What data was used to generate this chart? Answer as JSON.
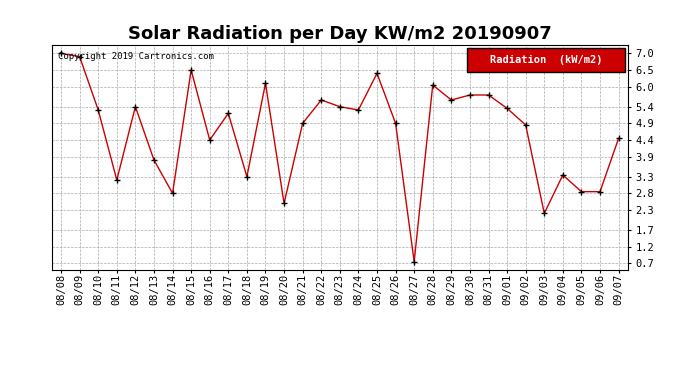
{
  "title": "Solar Radiation per Day KW/m2 20190907",
  "copyright": "Copyright 2019 Cartronics.com",
  "legend_label": "Radiation  (kW/m2)",
  "dates": [
    "08/08",
    "08/09",
    "08/10",
    "08/11",
    "08/12",
    "08/13",
    "08/14",
    "08/15",
    "08/16",
    "08/17",
    "08/18",
    "08/19",
    "08/20",
    "08/21",
    "08/22",
    "08/23",
    "08/24",
    "08/25",
    "08/26",
    "08/27",
    "08/28",
    "08/29",
    "08/30",
    "08/31",
    "09/01",
    "09/02",
    "09/03",
    "09/04",
    "09/05",
    "09/06",
    "09/07"
  ],
  "values": [
    7.0,
    6.9,
    5.3,
    3.2,
    5.4,
    3.8,
    2.8,
    6.5,
    4.4,
    5.2,
    3.3,
    6.1,
    2.5,
    4.9,
    5.6,
    5.4,
    5.3,
    6.4,
    4.9,
    0.75,
    6.05,
    5.6,
    5.75,
    5.75,
    5.35,
    4.85,
    2.2,
    3.35,
    2.85,
    2.85,
    4.45
  ],
  "line_color": "#cc0000",
  "marker_color": "#000000",
  "bg_color": "#ffffff",
  "grid_color": "#aaaaaa",
  "ylim": [
    0.5,
    7.25
  ],
  "yticks": [
    0.7,
    1.2,
    1.7,
    2.3,
    2.8,
    3.3,
    3.9,
    4.4,
    4.9,
    5.4,
    6.0,
    6.5,
    7.0
  ],
  "title_fontsize": 13,
  "legend_bg": "#cc0000",
  "legend_fg": "#ffffff",
  "copyright_fontsize": 6.5,
  "tick_fontsize": 7.5
}
